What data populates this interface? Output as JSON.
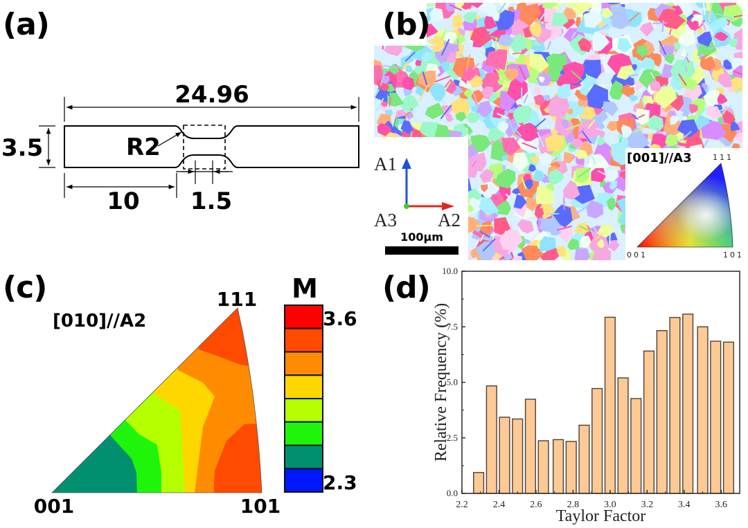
{
  "panels": {
    "a": {
      "label": "(a)",
      "dim_total": "24.96",
      "dim_width": "3.5",
      "dim_radius": "R2",
      "dim_shoulder": "10",
      "dim_gauge": "1.5"
    },
    "b": {
      "label": "(b)",
      "axis_a1": "A1",
      "axis_a2": "A2",
      "axis_a3": "A3",
      "scale_bar": "100µm",
      "ipf_title": "[001]//A3",
      "ipf_111": "111",
      "ipf_001": "001",
      "ipf_101": "101",
      "colors": {
        "axis_a1": "#1f4fe0",
        "axis_a2": "#e8231c",
        "axis_a3": "#3fd12a"
      }
    },
    "c": {
      "label": "(c)",
      "ipf_title": "[010]//A2",
      "vertex_111": "111",
      "vertex_001": "001",
      "vertex_101": "101",
      "colorbar_title": "M",
      "colorbar_max": "3.6",
      "colorbar_min": "2.3",
      "colorbar_colors": [
        "#ff0000",
        "#ff4a00",
        "#ff8c00",
        "#ffd700",
        "#b5ff00",
        "#1ef50a",
        "#009070",
        "#0018ff"
      ]
    },
    "d": {
      "label": "(d)"
    }
  },
  "chart_data": {
    "type": "bar",
    "title": "",
    "xlabel": "Taylor Factor",
    "ylabel": "Relative Frequency (%)",
    "xlim": [
      2.2,
      3.7
    ],
    "ylim": [
      0.0,
      10.0
    ],
    "xticks": [
      "2.2",
      "2.4",
      "2.6",
      "2.8",
      "3.0",
      "3.2",
      "3.4",
      "3.6"
    ],
    "yticks": [
      "0.0",
      "2.5",
      "5.0",
      "7.5",
      "10.0"
    ],
    "bar_color": "#fdc994",
    "bar_edge": "#4a4038",
    "x": [
      2.29,
      2.36,
      2.43,
      2.5,
      2.57,
      2.64,
      2.72,
      2.79,
      2.86,
      2.93,
      3.0,
      3.07,
      3.14,
      3.21,
      3.28,
      3.35,
      3.42,
      3.5,
      3.57,
      3.64
    ],
    "values": [
      0.94,
      4.84,
      3.43,
      3.35,
      4.24,
      2.37,
      2.42,
      2.34,
      3.07,
      4.72,
      7.93,
      5.2,
      4.27,
      6.41,
      7.33,
      7.92,
      8.07,
      7.5,
      6.85,
      6.81
    ],
    "legend": "none",
    "grid": false
  }
}
